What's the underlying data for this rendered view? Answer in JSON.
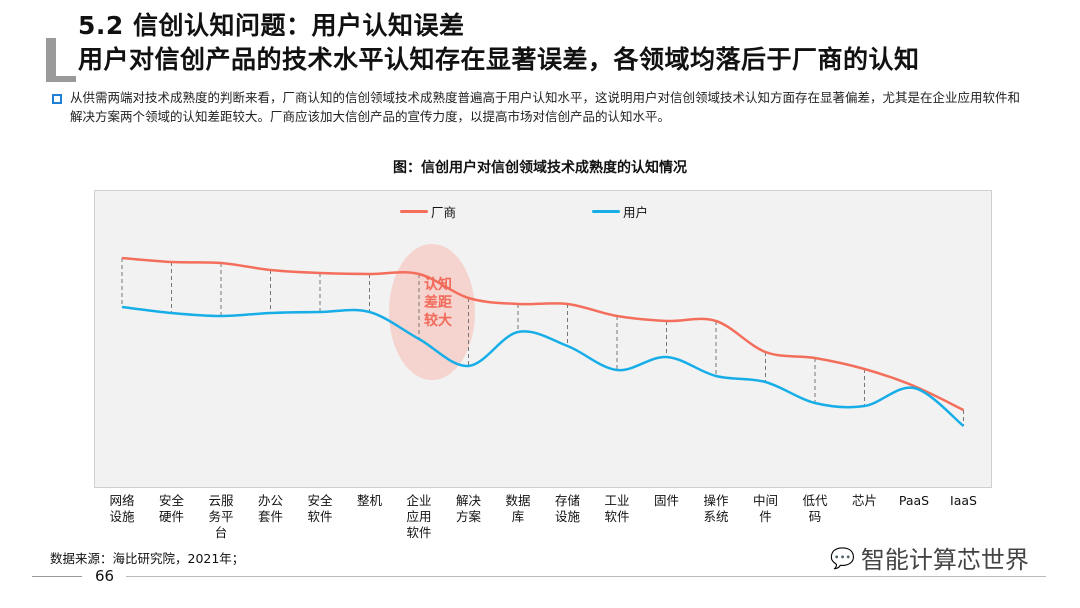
{
  "header": {
    "title": "5.2 信创认知问题：用户认知误差",
    "subtitle": "用户对信创产品的技术水平认知存在显著误差，各领域均落后于厂商的认知"
  },
  "description": "从供需两端对技术成熟度的判断来看，厂商认知的信创领域技术成熟度普遍高于用户认知水平，这说明用户对信创领域技术认知方面存在显著偏差，尤其是在企业应用软件和解决方案两个领域的认知差距较大。厂商应该加大信创产品的宣传力度，以提高市场对信创产品的认知水平。",
  "chart_data": {
    "type": "line",
    "title": "图：信创用户对信创领域技术成熟度的认知情况",
    "categories": [
      "网络设施",
      "安全硬件",
      "云服务平台",
      "办公套件",
      "安全软件",
      "整机",
      "企业应用软件",
      "解决方案",
      "数据库",
      "存储设施",
      "工业软件",
      "固件",
      "操作系统",
      "中间件",
      "低代码",
      "芯片",
      "PaaS",
      "IaaS"
    ],
    "series": [
      {
        "name": "厂商",
        "color": "#f46e5c",
        "values": [
          96,
          94,
          93.5,
          90,
          88.5,
          88,
          88,
          76,
          73,
          73,
          67,
          64.5,
          64.5,
          49,
          46,
          40.5,
          32,
          20
        ]
      },
      {
        "name": "用户",
        "color": "#17aee8",
        "values": [
          71.5,
          68.5,
          67,
          68.5,
          69,
          69,
          55.5,
          42,
          59,
          52,
          40,
          46.5,
          37,
          34,
          23.5,
          22,
          31,
          12
        ]
      }
    ],
    "ylim": [
      0,
      100
    ],
    "grid": false,
    "legend": "top-center",
    "annotation": "认知差距较大"
  },
  "footer": {
    "source": "数据来源：海比研究院，2021年；",
    "page": "66",
    "brand": "智能计算芯世界"
  }
}
